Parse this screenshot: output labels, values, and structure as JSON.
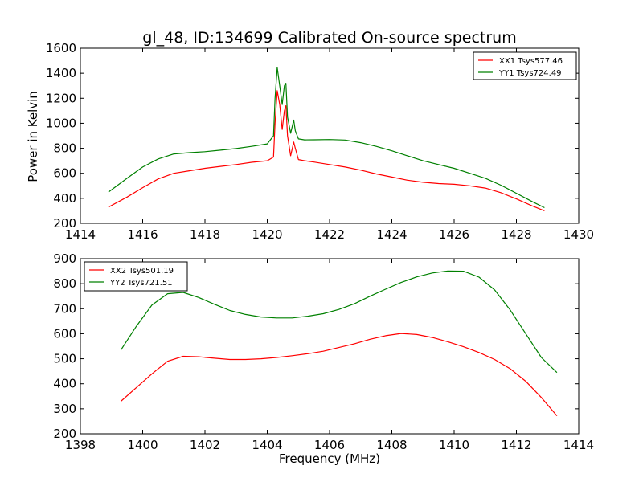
{
  "figure": {
    "title": "gl_48, ID:134699 Calibrated On-source spectrum",
    "xlabel": "Frequency (MHz)",
    "ylabel": "Power in Kelvin"
  },
  "colors": {
    "red": "#ff0000",
    "green": "#008000",
    "axis": "#000000",
    "background": "#ffffff"
  },
  "chart_data": [
    {
      "type": "line",
      "title": "gl_48, ID:134699 Calibrated On-source spectrum",
      "xlabel": "",
      "ylabel": "Power in Kelvin",
      "xlim": [
        1414,
        1430
      ],
      "ylim": [
        200,
        1600
      ],
      "xticks": [
        1414,
        1416,
        1418,
        1420,
        1422,
        1424,
        1426,
        1428,
        1430
      ],
      "yticks": [
        200,
        400,
        600,
        800,
        1000,
        1200,
        1400,
        1600
      ],
      "grid": false,
      "legend_position": "top-right",
      "series": [
        {
          "name": "XX1 Tsys577.46",
          "color": "#ff0000",
          "x": [
            1414.9,
            1415.5,
            1416,
            1416.5,
            1417,
            1417.5,
            1418,
            1418.5,
            1419,
            1419.5,
            1420,
            1420.2,
            1420.25,
            1420.32,
            1420.4,
            1420.48,
            1420.55,
            1420.6,
            1420.65,
            1420.75,
            1420.85,
            1420.9,
            1421,
            1421.2,
            1421.5,
            1422,
            1422.5,
            1423,
            1423.5,
            1424,
            1424.5,
            1425,
            1425.5,
            1426,
            1426.5,
            1427,
            1427.5,
            1428,
            1428.5,
            1428.9
          ],
          "y": [
            330,
            410,
            485,
            555,
            600,
            620,
            640,
            655,
            670,
            688,
            700,
            730,
            1000,
            1260,
            1150,
            950,
            1100,
            1140,
            900,
            740,
            850,
            800,
            710,
            700,
            690,
            670,
            650,
            625,
            595,
            570,
            545,
            528,
            518,
            512,
            500,
            482,
            445,
            395,
            340,
            300
          ]
        },
        {
          "name": "YY1 Tsys724.49",
          "color": "#008000",
          "x": [
            1414.9,
            1415.5,
            1416,
            1416.5,
            1417,
            1417.5,
            1418,
            1418.5,
            1419,
            1419.5,
            1420,
            1420.2,
            1420.25,
            1420.32,
            1420.4,
            1420.48,
            1420.55,
            1420.6,
            1420.65,
            1420.75,
            1420.85,
            1420.9,
            1421,
            1421.2,
            1421.5,
            1422,
            1422.5,
            1423,
            1423.5,
            1424,
            1424.5,
            1425,
            1425.5,
            1426,
            1426.5,
            1427,
            1427.5,
            1428,
            1428.5,
            1428.9
          ],
          "y": [
            450,
            560,
            650,
            715,
            755,
            765,
            773,
            785,
            798,
            815,
            835,
            900,
            1200,
            1445,
            1300,
            1150,
            1300,
            1320,
            1050,
            920,
            1025,
            940,
            875,
            867,
            868,
            870,
            866,
            845,
            815,
            780,
            740,
            700,
            670,
            640,
            600,
            560,
            505,
            440,
            375,
            325
          ]
        }
      ]
    },
    {
      "type": "line",
      "title": "",
      "xlabel": "Frequency (MHz)",
      "ylabel": "",
      "xlim": [
        1398,
        1414
      ],
      "ylim": [
        200,
        900
      ],
      "xticks": [
        1398,
        1400,
        1402,
        1404,
        1406,
        1408,
        1410,
        1412,
        1414
      ],
      "yticks": [
        200,
        300,
        400,
        500,
        600,
        700,
        800,
        900
      ],
      "grid": false,
      "legend_position": "top-left",
      "series": [
        {
          "name": "XX2 Tsys501.19",
          "color": "#ff0000",
          "x": [
            1399.3,
            1399.8,
            1400.3,
            1400.8,
            1401.3,
            1401.8,
            1402.3,
            1402.8,
            1403.3,
            1403.8,
            1404.3,
            1404.8,
            1405.3,
            1405.8,
            1406.3,
            1406.8,
            1407.3,
            1407.8,
            1408.3,
            1408.8,
            1409.3,
            1409.8,
            1410.3,
            1410.8,
            1411.3,
            1411.8,
            1412.3,
            1412.8,
            1413.3
          ],
          "y": [
            330,
            385,
            440,
            490,
            510,
            508,
            502,
            497,
            497,
            500,
            505,
            512,
            520,
            530,
            545,
            560,
            578,
            592,
            601,
            597,
            585,
            568,
            548,
            525,
            497,
            460,
            410,
            345,
            272
          ]
        },
        {
          "name": "YY2 Tsys721.51",
          "color": "#008000",
          "x": [
            1399.3,
            1399.8,
            1400.3,
            1400.8,
            1401.3,
            1401.8,
            1402.3,
            1402.8,
            1403.3,
            1403.8,
            1404.3,
            1404.8,
            1405.3,
            1405.8,
            1406.3,
            1406.8,
            1407.3,
            1407.8,
            1408.3,
            1408.8,
            1409.3,
            1409.8,
            1410.3,
            1410.8,
            1411.3,
            1411.8,
            1412.3,
            1412.8,
            1413.3
          ],
          "y": [
            535,
            630,
            715,
            760,
            765,
            745,
            718,
            693,
            677,
            667,
            663,
            663,
            670,
            680,
            697,
            720,
            750,
            778,
            805,
            827,
            843,
            851,
            850,
            826,
            775,
            695,
            600,
            505,
            445
          ]
        }
      ]
    }
  ]
}
